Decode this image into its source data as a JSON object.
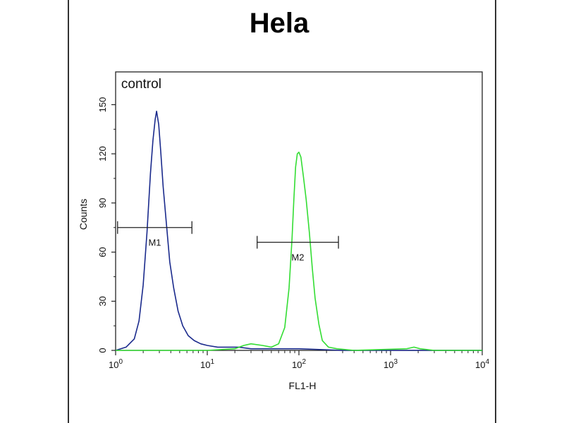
{
  "chart_data": {
    "type": "line",
    "title": "Hela",
    "xlabel": "FL1-H",
    "ylabel": "Counts",
    "x_scale": "log",
    "xlim": [
      1,
      10000
    ],
    "ylim": [
      0,
      170
    ],
    "x_ticks": [
      {
        "value": 1,
        "base": "10",
        "exp": "0"
      },
      {
        "value": 10,
        "base": "10",
        "exp": "1"
      },
      {
        "value": 100,
        "base": "10",
        "exp": "2"
      },
      {
        "value": 1000,
        "base": "10",
        "exp": "3"
      },
      {
        "value": 10000,
        "base": "10",
        "exp": "4"
      }
    ],
    "y_ticks": [
      0,
      30,
      60,
      90,
      120,
      150
    ],
    "grid": false,
    "series": [
      {
        "name": "control",
        "color": "#1a2a8c",
        "points": [
          [
            1.0,
            0
          ],
          [
            1.3,
            2
          ],
          [
            1.6,
            7
          ],
          [
            1.8,
            18
          ],
          [
            2.0,
            40
          ],
          [
            2.2,
            72
          ],
          [
            2.4,
            108
          ],
          [
            2.55,
            128
          ],
          [
            2.7,
            141
          ],
          [
            2.8,
            146
          ],
          [
            2.95,
            138
          ],
          [
            3.1,
            122
          ],
          [
            3.3,
            100
          ],
          [
            3.6,
            76
          ],
          [
            3.9,
            54
          ],
          [
            4.3,
            38
          ],
          [
            4.8,
            24
          ],
          [
            5.4,
            15
          ],
          [
            6.2,
            9
          ],
          [
            7.2,
            6
          ],
          [
            8.5,
            4
          ],
          [
            10,
            3
          ],
          [
            13,
            2
          ],
          [
            17,
            2
          ],
          [
            22,
            2
          ],
          [
            30,
            1
          ],
          [
            50,
            1
          ],
          [
            100,
            1
          ],
          [
            300,
            0
          ],
          [
            1000,
            0
          ],
          [
            10000,
            0
          ]
        ]
      },
      {
        "name": "",
        "color": "#33dd33",
        "points": [
          [
            1.0,
            0
          ],
          [
            10,
            0
          ],
          [
            20,
            1
          ],
          [
            25,
            3
          ],
          [
            30,
            4
          ],
          [
            40,
            3
          ],
          [
            50,
            2
          ],
          [
            60,
            4
          ],
          [
            70,
            14
          ],
          [
            78,
            38
          ],
          [
            84,
            68
          ],
          [
            88,
            92
          ],
          [
            92,
            112
          ],
          [
            96,
            120
          ],
          [
            100,
            121
          ],
          [
            105,
            118
          ],
          [
            112,
            106
          ],
          [
            120,
            92
          ],
          [
            130,
            72
          ],
          [
            140,
            50
          ],
          [
            150,
            32
          ],
          [
            165,
            16
          ],
          [
            180,
            6
          ],
          [
            210,
            2
          ],
          [
            260,
            1
          ],
          [
            400,
            0
          ],
          [
            1500,
            1
          ],
          [
            1800,
            2
          ],
          [
            2100,
            1
          ],
          [
            3000,
            0
          ],
          [
            10000,
            0
          ]
        ]
      }
    ],
    "annotations": [
      {
        "text": "control",
        "x": 1.15,
        "y": 160
      }
    ],
    "markers": [
      {
        "label": "M1",
        "x_start": 1.05,
        "x_end": 6.8,
        "y": 75
      },
      {
        "label": "M2",
        "x_start": 35,
        "x_end": 270,
        "y": 66
      }
    ]
  }
}
